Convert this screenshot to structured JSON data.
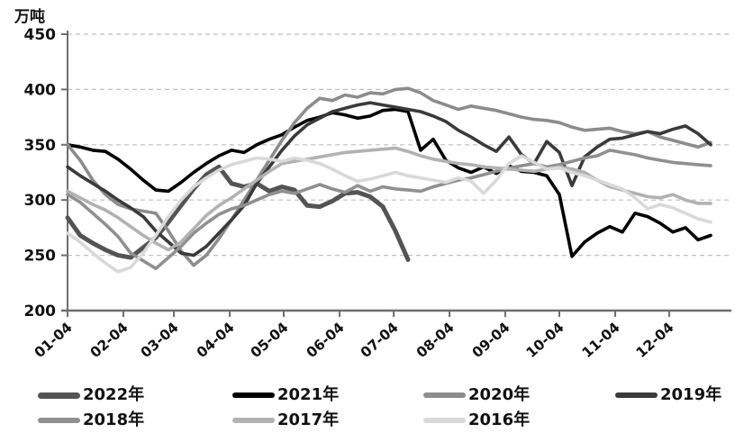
{
  "title": "万吨",
  "chart_data": {
    "type": "line",
    "unit_label": "万吨",
    "ylim": [
      200,
      450
    ],
    "yticks": [
      200,
      250,
      300,
      350,
      400,
      450
    ],
    "grid": "horizontal-dashed",
    "legend_position": "bottom",
    "x_tick_labels": [
      "01-04",
      "02-04",
      "03-04",
      "04-04",
      "05-04",
      "06-04",
      "07-04",
      "08-04",
      "09-04",
      "10-04",
      "11-04",
      "12-04"
    ],
    "x_tick_weeks": [
      0,
      4.43,
      8.43,
      12.86,
      17.14,
      21.57,
      25.86,
      30.29,
      34.71,
      39.0,
      43.43,
      47.71
    ],
    "axis_color": "#6e6e6e",
    "grid_color": "#bfbfbf",
    "series": [
      {
        "name": "2022年",
        "color": "#545454",
        "width": 5,
        "values": [
          284,
          268,
          261,
          255,
          250,
          248,
          257,
          266,
          280,
          295,
          310,
          323,
          330,
          315,
          312,
          315,
          308,
          312,
          309,
          295,
          294,
          299,
          306,
          307,
          303,
          294,
          272,
          246
        ]
      },
      {
        "name": "2021年",
        "color": "#000000",
        "width": 3.6,
        "values": [
          350,
          348,
          345,
          344,
          337,
          328,
          318,
          309,
          308,
          316,
          325,
          333,
          340,
          345,
          343,
          350,
          355,
          359,
          366,
          372,
          375,
          379,
          377,
          374,
          376,
          381,
          382,
          380,
          345,
          355,
          336,
          329,
          325,
          330,
          324,
          331,
          326,
          325,
          322,
          305,
          249,
          262,
          270,
          276,
          271,
          288,
          285,
          279,
          271,
          275,
          264,
          268
        ]
      },
      {
        "name": "2020年",
        "color": "#8c8c8c",
        "width": 3.6,
        "values": [
          350,
          336,
          318,
          305,
          296,
          292,
          290,
          288,
          272,
          254,
          241,
          250,
          265,
          282,
          300,
          318,
          336,
          354,
          370,
          383,
          392,
          390,
          395,
          393,
          397,
          396,
          400,
          401,
          397,
          390,
          386,
          382,
          385,
          383,
          381,
          378,
          375,
          373,
          372,
          370,
          366,
          363,
          364,
          365,
          362,
          360,
          362,
          357,
          354,
          351,
          348,
          352
        ]
      },
      {
        "name": "2019年",
        "color": "#3a3a3a",
        "width": 3.6,
        "values": [
          330,
          322,
          315,
          308,
          300,
          293,
          285,
          272,
          262,
          252,
          250,
          258,
          270,
          282,
          295,
          315,
          330,
          345,
          358,
          368,
          374,
          380,
          383,
          386,
          388,
          386,
          384,
          382,
          380,
          376,
          371,
          363,
          357,
          350,
          344,
          357,
          341,
          333,
          353,
          343,
          313,
          339,
          348,
          355,
          356,
          359,
          362,
          360,
          364,
          367,
          360,
          350
        ]
      },
      {
        "name": "2018年",
        "color": "#909090",
        "width": 3.6,
        "values": [
          305,
          298,
          288,
          278,
          267,
          252,
          245,
          238,
          248,
          258,
          270,
          279,
          287,
          292,
          295,
          300,
          305,
          308,
          306,
          310,
          314,
          310,
          307,
          313,
          308,
          312,
          310,
          309,
          308,
          312,
          315,
          318,
          320,
          323,
          326,
          329,
          331,
          333,
          330,
          332,
          335,
          338,
          340,
          345,
          343,
          341,
          338,
          336,
          334,
          333,
          332,
          331
        ]
      },
      {
        "name": "2017年",
        "color": "#b2b2b2",
        "width": 3.6,
        "values": [
          308,
          302,
          296,
          291,
          284,
          276,
          268,
          261,
          255,
          262,
          274,
          286,
          295,
          302,
          310,
          318,
          326,
          333,
          335,
          337,
          339,
          341,
          343,
          344,
          345,
          346,
          347,
          344,
          340,
          337,
          335,
          333,
          332,
          330,
          329,
          328,
          327,
          326,
          328,
          330,
          328,
          325,
          318,
          312,
          309,
          306,
          303,
          302,
          305,
          300,
          297,
          297
        ]
      },
      {
        "name": "2016年",
        "color": "#d9d9d9",
        "width": 3.6,
        "values": [
          270,
          262,
          252,
          243,
          235,
          239,
          252,
          268,
          285,
          300,
          312,
          320,
          327,
          332,
          335,
          338,
          337,
          335,
          338,
          336,
          333,
          328,
          322,
          317,
          319,
          322,
          325,
          322,
          320,
          318,
          316,
          320,
          317,
          306,
          318,
          333,
          340,
          334,
          328,
          329,
          325,
          322,
          318,
          314,
          310,
          302,
          292,
          296,
          293,
          288,
          283,
          280
        ]
      }
    ],
    "legend_rows": [
      [
        "2022年",
        "2021年",
        "2020年",
        "2019年"
      ],
      [
        "2018年",
        "2017年",
        "2016年"
      ]
    ]
  }
}
